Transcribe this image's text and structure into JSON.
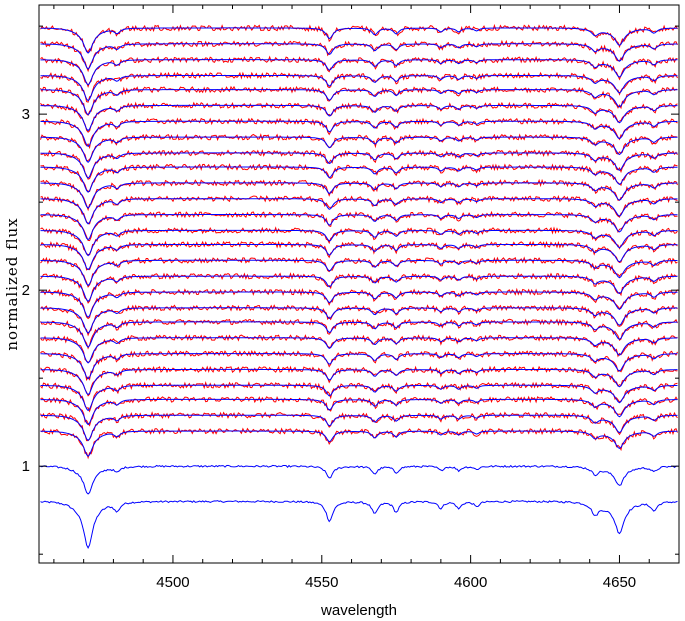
{
  "chart_data": {
    "type": "line",
    "title": "",
    "xlabel": "wavelength",
    "ylabel": "normalized flux",
    "xlim": [
      4455,
      4670
    ],
    "ylim": [
      0.45,
      3.62
    ],
    "x_ticks": [
      4500,
      4550,
      4600,
      4650
    ],
    "y_ticks": [
      1,
      2,
      3
    ],
    "grid": false,
    "legend": "none",
    "colors": {
      "model": "#0000ff",
      "observed": "#ff0000",
      "axes": "#000000"
    },
    "series": [
      {
        "role": "model",
        "offset": 0.8,
        "depth": 1.0
      },
      {
        "role": "model",
        "offset": 1.0,
        "depth": 0.6
      },
      {
        "role": "observed+model",
        "offset": 1.2
      },
      {
        "role": "observed+model",
        "offset": 1.29
      },
      {
        "role": "observed+model",
        "offset": 1.38
      },
      {
        "role": "observed+model",
        "offset": 1.46
      },
      {
        "role": "observed+model",
        "offset": 1.55
      },
      {
        "role": "observed+model",
        "offset": 1.64
      },
      {
        "role": "observed+model",
        "offset": 1.73
      },
      {
        "role": "observed+model",
        "offset": 1.82
      },
      {
        "role": "observed+model",
        "offset": 1.9
      },
      {
        "role": "observed+model",
        "offset": 1.99
      },
      {
        "role": "observed+model",
        "offset": 2.08
      },
      {
        "role": "observed+model",
        "offset": 2.17
      },
      {
        "role": "observed+model",
        "offset": 2.26
      },
      {
        "role": "observed+model",
        "offset": 2.34
      },
      {
        "role": "observed+model",
        "offset": 2.43
      },
      {
        "role": "observed+model",
        "offset": 2.52
      },
      {
        "role": "observed+model",
        "offset": 2.61
      },
      {
        "role": "observed+model",
        "offset": 2.7
      },
      {
        "role": "observed+model",
        "offset": 2.78
      },
      {
        "role": "observed+model",
        "offset": 2.87
      },
      {
        "role": "observed+model",
        "offset": 2.96
      },
      {
        "role": "observed+model",
        "offset": 3.05
      },
      {
        "role": "observed+model",
        "offset": 3.14
      },
      {
        "role": "observed+model",
        "offset": 3.22
      },
      {
        "role": "observed+model",
        "offset": 3.31
      },
      {
        "role": "observed+model",
        "offset": 3.4
      },
      {
        "role": "observed+model",
        "offset": 3.49
      }
    ],
    "absorption_lines": [
      {
        "wavelength": 4471.5,
        "depth": 0.22,
        "width": 1.8
      },
      {
        "wavelength": 4481.2,
        "depth": 0.05,
        "width": 1.2
      },
      {
        "wavelength": 4552.6,
        "depth": 0.11,
        "width": 1.4
      },
      {
        "wavelength": 4567.8,
        "depth": 0.07,
        "width": 1.2
      },
      {
        "wavelength": 4575.0,
        "depth": 0.06,
        "width": 1.1
      },
      {
        "wavelength": 4590.0,
        "depth": 0.04,
        "width": 1.0
      },
      {
        "wavelength": 4596.0,
        "depth": 0.04,
        "width": 1.0
      },
      {
        "wavelength": 4602.0,
        "depth": 0.03,
        "width": 1.0
      },
      {
        "wavelength": 4641.8,
        "depth": 0.06,
        "width": 1.3
      },
      {
        "wavelength": 4650.0,
        "depth": 0.15,
        "width": 1.8
      },
      {
        "wavelength": 4661.6,
        "depth": 0.05,
        "width": 1.2
      }
    ]
  }
}
